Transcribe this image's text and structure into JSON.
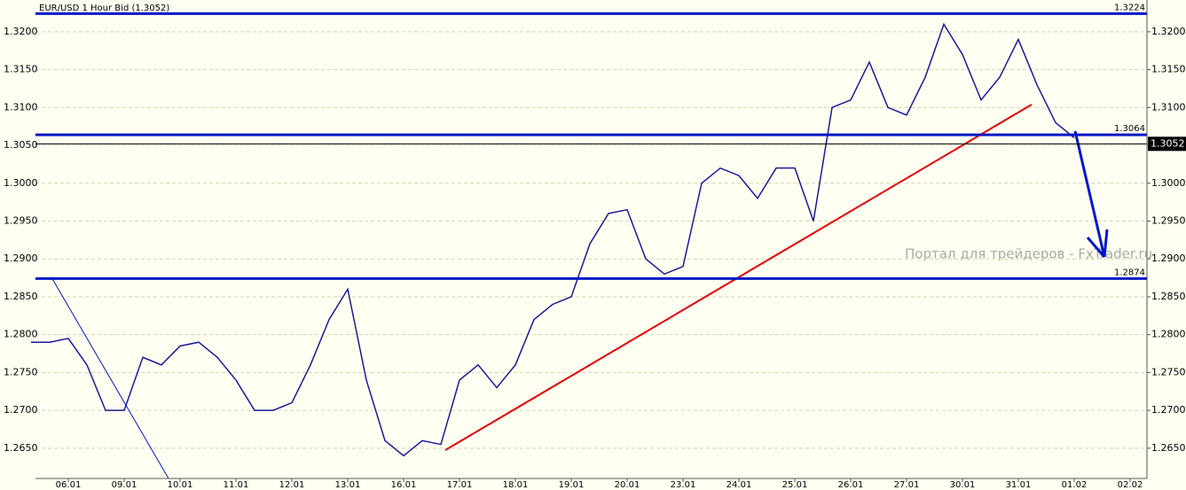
{
  "chart_data": {
    "type": "line",
    "title": "EUR/USD 1 Hour Bid (1.3052)",
    "watermark": "Портал для трейдеров - FxTrader.ru",
    "categories": [
      null,
      null,
      "06.01",
      null,
      null,
      "09.01",
      null,
      null,
      "10.01",
      null,
      null,
      "11.01",
      null,
      null,
      "12.01",
      null,
      null,
      "13.01",
      null,
      null,
      "16.01",
      null,
      null,
      "17.01",
      null,
      null,
      "18.01",
      null,
      null,
      "19.01",
      null,
      null,
      "20.01",
      null,
      null,
      "23.01",
      null,
      null,
      "24.01",
      null,
      null,
      "25.01",
      null,
      null,
      "26.01",
      null,
      null,
      "27.01",
      null,
      null,
      "30.01",
      null,
      null,
      "31.01",
      null,
      null,
      "01.02",
      null,
      null,
      "02.02"
    ],
    "series": [
      {
        "name": "EUR/USD",
        "color": "#1a1a9a",
        "values": [
          1.279,
          1.279,
          1.2795,
          1.276,
          1.27,
          1.27,
          1.277,
          1.276,
          1.2785,
          1.279,
          1.277,
          1.274,
          1.27,
          1.27,
          1.271,
          1.276,
          1.282,
          1.286,
          1.274,
          1.266,
          1.264,
          1.266,
          1.2655,
          1.274,
          1.276,
          1.273,
          1.276,
          1.282,
          1.284,
          1.285,
          1.292,
          1.296,
          1.2965,
          1.29,
          1.288,
          1.289,
          1.3,
          1.302,
          1.301,
          1.298,
          1.302,
          1.302,
          1.295,
          1.31,
          1.311,
          1.316,
          1.31,
          1.309,
          1.314,
          1.321,
          1.317,
          1.311,
          1.314,
          1.319,
          1.313,
          1.308,
          1.306,
          null,
          null,
          null
        ]
      }
    ],
    "levels": [
      {
        "value": 1.3224,
        "label": "1.3224"
      },
      {
        "value": 1.3064,
        "label": "1.3064"
      },
      {
        "value": 1.2874,
        "label": "1.2874"
      }
    ],
    "level_color": "#0018c8",
    "current_price": {
      "value": 1.3052,
      "label": "1.3052"
    },
    "ylim": [
      1.261,
      1.3242
    ],
    "yticks": [
      {
        "value": 1.265,
        "label": "1.2650"
      },
      {
        "value": 1.27,
        "label": "1.2700"
      },
      {
        "value": 1.275,
        "label": "1.2750"
      },
      {
        "value": 1.28,
        "label": "1.2800"
      },
      {
        "value": 1.285,
        "label": "1.2850"
      },
      {
        "value": 1.29,
        "label": "1.2900"
      },
      {
        "value": 1.295,
        "label": "1.2950"
      },
      {
        "value": 1.3,
        "label": "1.3000"
      },
      {
        "value": 1.305,
        "label": "1.3050"
      },
      {
        "value": 1.31,
        "label": "1.3100"
      },
      {
        "value": 1.315,
        "label": "1.3150"
      },
      {
        "value": 1.32,
        "label": "1.3200"
      }
    ],
    "grid": true
  }
}
